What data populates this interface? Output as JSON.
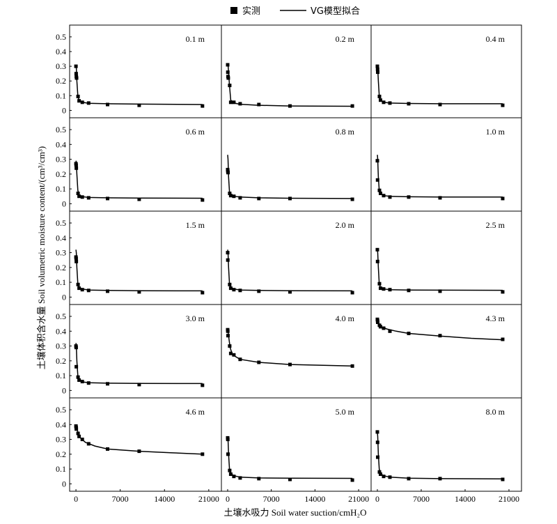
{
  "legend": {
    "measured_label": "实测",
    "fit_label": "VG模型拟合"
  },
  "ylabel": "土壤体积含水量 Soil volumetric moisture content/(cm³/cm³)",
  "xlabel": "土壤水吸力 Soil water suction/cmH₂O",
  "chart_data": {
    "type": "scatter",
    "layout": "5x3 small multiples",
    "x_ticks": [
      "0",
      "7000",
      "14000",
      "21000"
    ],
    "y_ticks": [
      "0",
      "0.1",
      "0.2",
      "0.3",
      "0.4",
      "0.5"
    ],
    "xlim": [
      -1000,
      23000
    ],
    "ylim": [
      -0.05,
      0.58
    ],
    "panels": [
      {
        "label": "0.1 m",
        "measured": [
          [
            0,
            0.3
          ],
          [
            30,
            0.25
          ],
          [
            60,
            0.23
          ],
          [
            100,
            0.22
          ],
          [
            330,
            0.095
          ],
          [
            500,
            0.065
          ],
          [
            1000,
            0.055
          ],
          [
            2000,
            0.05
          ],
          [
            5000,
            0.04
          ],
          [
            10000,
            0.035
          ],
          [
            20000,
            0.03
          ]
        ],
        "fit": [
          [
            0,
            0.3
          ],
          [
            60,
            0.29
          ],
          [
            150,
            0.2
          ],
          [
            300,
            0.1
          ],
          [
            500,
            0.065
          ],
          [
            1000,
            0.055
          ],
          [
            2000,
            0.048
          ],
          [
            5000,
            0.045
          ],
          [
            10000,
            0.043
          ],
          [
            20000,
            0.04
          ]
        ]
      },
      {
        "label": "0.2 m",
        "measured": [
          [
            0,
            0.31
          ],
          [
            30,
            0.26
          ],
          [
            60,
            0.23
          ],
          [
            100,
            0.22
          ],
          [
            330,
            0.17
          ],
          [
            500,
            0.055
          ],
          [
            1000,
            0.055
          ],
          [
            2000,
            0.045
          ],
          [
            5000,
            0.04
          ],
          [
            10000,
            0.03
          ],
          [
            20000,
            0.03
          ]
        ],
        "fit": [
          [
            0,
            0.32
          ],
          [
            60,
            0.31
          ],
          [
            150,
            0.26
          ],
          [
            300,
            0.17
          ],
          [
            500,
            0.07
          ],
          [
            1000,
            0.05
          ],
          [
            2000,
            0.042
          ],
          [
            5000,
            0.035
          ],
          [
            10000,
            0.03
          ],
          [
            20000,
            0.028
          ]
        ]
      },
      {
        "label": "0.4 m",
        "measured": [
          [
            0,
            0.3
          ],
          [
            30,
            0.28
          ],
          [
            60,
            0.26
          ],
          [
            330,
            0.095
          ],
          [
            500,
            0.07
          ],
          [
            1000,
            0.055
          ],
          [
            2000,
            0.05
          ],
          [
            5000,
            0.045
          ],
          [
            10000,
            0.04
          ],
          [
            20000,
            0.035
          ]
        ],
        "fit": [
          [
            0,
            0.3
          ],
          [
            60,
            0.29
          ],
          [
            150,
            0.2
          ],
          [
            300,
            0.1
          ],
          [
            500,
            0.07
          ],
          [
            1000,
            0.055
          ],
          [
            2000,
            0.05
          ],
          [
            5000,
            0.047
          ],
          [
            10000,
            0.045
          ],
          [
            20000,
            0.045
          ]
        ]
      },
      {
        "label": "0.6 m",
        "measured": [
          [
            0,
            0.27
          ],
          [
            30,
            0.26
          ],
          [
            60,
            0.24
          ],
          [
            330,
            0.07
          ],
          [
            500,
            0.05
          ],
          [
            1000,
            0.045
          ],
          [
            2000,
            0.04
          ],
          [
            5000,
            0.035
          ],
          [
            10000,
            0.03
          ],
          [
            20000,
            0.025
          ]
        ],
        "fit": [
          [
            0,
            0.29
          ],
          [
            60,
            0.28
          ],
          [
            150,
            0.2
          ],
          [
            300,
            0.09
          ],
          [
            500,
            0.06
          ],
          [
            1000,
            0.048
          ],
          [
            2000,
            0.042
          ],
          [
            5000,
            0.04
          ],
          [
            10000,
            0.038
          ],
          [
            20000,
            0.037
          ]
        ]
      },
      {
        "label": "0.8 m",
        "measured": [
          [
            0,
            0.23
          ],
          [
            30,
            0.22
          ],
          [
            60,
            0.21
          ],
          [
            330,
            0.07
          ],
          [
            500,
            0.055
          ],
          [
            1000,
            0.05
          ],
          [
            2000,
            0.04
          ],
          [
            5000,
            0.035
          ],
          [
            10000,
            0.035
          ],
          [
            20000,
            0.03
          ]
        ],
        "fit": [
          [
            0,
            0.33
          ],
          [
            60,
            0.3
          ],
          [
            150,
            0.18
          ],
          [
            300,
            0.08
          ],
          [
            500,
            0.06
          ],
          [
            1000,
            0.05
          ],
          [
            2000,
            0.045
          ],
          [
            5000,
            0.04
          ],
          [
            10000,
            0.037
          ],
          [
            20000,
            0.035
          ]
        ]
      },
      {
        "label": "1.0 m",
        "measured": [
          [
            0,
            0.29
          ],
          [
            30,
            0.16
          ],
          [
            330,
            0.09
          ],
          [
            500,
            0.07
          ],
          [
            1000,
            0.055
          ],
          [
            2000,
            0.045
          ],
          [
            5000,
            0.045
          ],
          [
            10000,
            0.04
          ],
          [
            20000,
            0.035
          ]
        ],
        "fit": [
          [
            0,
            0.33
          ],
          [
            60,
            0.3
          ],
          [
            150,
            0.18
          ],
          [
            300,
            0.09
          ],
          [
            500,
            0.065
          ],
          [
            1000,
            0.055
          ],
          [
            2000,
            0.05
          ],
          [
            5000,
            0.047
          ],
          [
            10000,
            0.045
          ],
          [
            20000,
            0.045
          ]
        ]
      },
      {
        "label": "1.5 m",
        "measured": [
          [
            0,
            0.27
          ],
          [
            30,
            0.26
          ],
          [
            60,
            0.24
          ],
          [
            330,
            0.085
          ],
          [
            500,
            0.06
          ],
          [
            1000,
            0.05
          ],
          [
            2000,
            0.045
          ],
          [
            5000,
            0.04
          ],
          [
            10000,
            0.035
          ],
          [
            20000,
            0.03
          ]
        ],
        "fit": [
          [
            0,
            0.32
          ],
          [
            60,
            0.3
          ],
          [
            150,
            0.2
          ],
          [
            300,
            0.09
          ],
          [
            500,
            0.065
          ],
          [
            1000,
            0.055
          ],
          [
            2000,
            0.048
          ],
          [
            5000,
            0.045
          ],
          [
            10000,
            0.043
          ],
          [
            20000,
            0.042
          ]
        ]
      },
      {
        "label": "2.0 m",
        "measured": [
          [
            0,
            0.3
          ],
          [
            30,
            0.25
          ],
          [
            330,
            0.085
          ],
          [
            500,
            0.06
          ],
          [
            1000,
            0.05
          ],
          [
            2000,
            0.045
          ],
          [
            5000,
            0.04
          ],
          [
            10000,
            0.035
          ],
          [
            20000,
            0.03
          ]
        ],
        "fit": [
          [
            0,
            0.32
          ],
          [
            60,
            0.3
          ],
          [
            150,
            0.2
          ],
          [
            300,
            0.09
          ],
          [
            500,
            0.065
          ],
          [
            1000,
            0.055
          ],
          [
            2000,
            0.048
          ],
          [
            5000,
            0.045
          ],
          [
            10000,
            0.043
          ],
          [
            20000,
            0.042
          ]
        ]
      },
      {
        "label": "2.5 m",
        "measured": [
          [
            0,
            0.32
          ],
          [
            30,
            0.24
          ],
          [
            330,
            0.09
          ],
          [
            500,
            0.06
          ],
          [
            1000,
            0.055
          ],
          [
            2000,
            0.05
          ],
          [
            5000,
            0.045
          ],
          [
            10000,
            0.04
          ],
          [
            20000,
            0.035
          ]
        ],
        "fit": [
          [
            0,
            0.32
          ],
          [
            60,
            0.3
          ],
          [
            150,
            0.2
          ],
          [
            300,
            0.09
          ],
          [
            500,
            0.065
          ],
          [
            1000,
            0.055
          ],
          [
            2000,
            0.05
          ],
          [
            5000,
            0.048
          ],
          [
            10000,
            0.047
          ],
          [
            20000,
            0.046
          ]
        ]
      },
      {
        "label": "3.0 m",
        "measured": [
          [
            0,
            0.3
          ],
          [
            30,
            0.29
          ],
          [
            60,
            0.16
          ],
          [
            330,
            0.09
          ],
          [
            500,
            0.07
          ],
          [
            1000,
            0.06
          ],
          [
            2000,
            0.05
          ],
          [
            5000,
            0.045
          ],
          [
            10000,
            0.04
          ],
          [
            20000,
            0.035
          ]
        ],
        "fit": [
          [
            0,
            0.32
          ],
          [
            60,
            0.3
          ],
          [
            150,
            0.2
          ],
          [
            300,
            0.1
          ],
          [
            500,
            0.07
          ],
          [
            1000,
            0.058
          ],
          [
            2000,
            0.052
          ],
          [
            5000,
            0.049
          ],
          [
            10000,
            0.048
          ],
          [
            20000,
            0.047
          ]
        ]
      },
      {
        "label": "4.0 m",
        "measured": [
          [
            0,
            0.41
          ],
          [
            30,
            0.4
          ],
          [
            60,
            0.37
          ],
          [
            330,
            0.3
          ],
          [
            500,
            0.25
          ],
          [
            1000,
            0.24
          ],
          [
            2000,
            0.21
          ],
          [
            5000,
            0.19
          ],
          [
            10000,
            0.175
          ],
          [
            20000,
            0.165
          ]
        ],
        "fit": [
          [
            0,
            0.42
          ],
          [
            60,
            0.4
          ],
          [
            200,
            0.35
          ],
          [
            400,
            0.29
          ],
          [
            700,
            0.25
          ],
          [
            1200,
            0.23
          ],
          [
            2000,
            0.21
          ],
          [
            5000,
            0.19
          ],
          [
            10000,
            0.175
          ],
          [
            20000,
            0.165
          ]
        ]
      },
      {
        "label": "4.3 m",
        "measured": [
          [
            0,
            0.48
          ],
          [
            30,
            0.47
          ],
          [
            60,
            0.46
          ],
          [
            330,
            0.44
          ],
          [
            500,
            0.43
          ],
          [
            1000,
            0.42
          ],
          [
            2000,
            0.4
          ],
          [
            5000,
            0.385
          ],
          [
            10000,
            0.37
          ],
          [
            20000,
            0.345
          ]
        ],
        "fit": [
          [
            0,
            0.48
          ],
          [
            100,
            0.47
          ],
          [
            300,
            0.45
          ],
          [
            700,
            0.43
          ],
          [
            1500,
            0.415
          ],
          [
            3000,
            0.4
          ],
          [
            5000,
            0.385
          ],
          [
            10000,
            0.367
          ],
          [
            15000,
            0.352
          ],
          [
            20000,
            0.342
          ]
        ]
      },
      {
        "label": "4.6 m",
        "measured": [
          [
            0,
            0.39
          ],
          [
            30,
            0.38
          ],
          [
            60,
            0.37
          ],
          [
            330,
            0.34
          ],
          [
            500,
            0.32
          ],
          [
            1000,
            0.3
          ],
          [
            2000,
            0.27
          ],
          [
            5000,
            0.235
          ],
          [
            10000,
            0.22
          ],
          [
            20000,
            0.2
          ]
        ],
        "fit": [
          [
            0,
            0.4
          ],
          [
            100,
            0.38
          ],
          [
            300,
            0.35
          ],
          [
            700,
            0.31
          ],
          [
            1500,
            0.28
          ],
          [
            3000,
            0.255
          ],
          [
            5000,
            0.235
          ],
          [
            10000,
            0.22
          ],
          [
            15000,
            0.21
          ],
          [
            20000,
            0.2
          ]
        ]
      },
      {
        "label": "5.0 m",
        "measured": [
          [
            0,
            0.31
          ],
          [
            30,
            0.3
          ],
          [
            60,
            0.2
          ],
          [
            330,
            0.09
          ],
          [
            500,
            0.065
          ],
          [
            1000,
            0.05
          ],
          [
            2000,
            0.04
          ],
          [
            5000,
            0.035
          ],
          [
            10000,
            0.03
          ],
          [
            20000,
            0.025
          ]
        ],
        "fit": [
          [
            0,
            0.32
          ],
          [
            60,
            0.3
          ],
          [
            150,
            0.2
          ],
          [
            300,
            0.1
          ],
          [
            500,
            0.07
          ],
          [
            1000,
            0.055
          ],
          [
            2000,
            0.045
          ],
          [
            5000,
            0.04
          ],
          [
            10000,
            0.038
          ],
          [
            20000,
            0.037
          ]
        ]
      },
      {
        "label": "8.0 m",
        "measured": [
          [
            0,
            0.35
          ],
          [
            30,
            0.28
          ],
          [
            60,
            0.18
          ],
          [
            330,
            0.08
          ],
          [
            500,
            0.065
          ],
          [
            1000,
            0.05
          ],
          [
            2000,
            0.045
          ],
          [
            5000,
            0.035
          ],
          [
            10000,
            0.035
          ],
          [
            20000,
            0.03
          ]
        ],
        "fit": [
          [
            0,
            0.35
          ],
          [
            60,
            0.32
          ],
          [
            150,
            0.2
          ],
          [
            300,
            0.1
          ],
          [
            500,
            0.07
          ],
          [
            1000,
            0.055
          ],
          [
            2000,
            0.045
          ],
          [
            5000,
            0.038
          ],
          [
            10000,
            0.035
          ],
          [
            20000,
            0.033
          ]
        ]
      }
    ]
  }
}
